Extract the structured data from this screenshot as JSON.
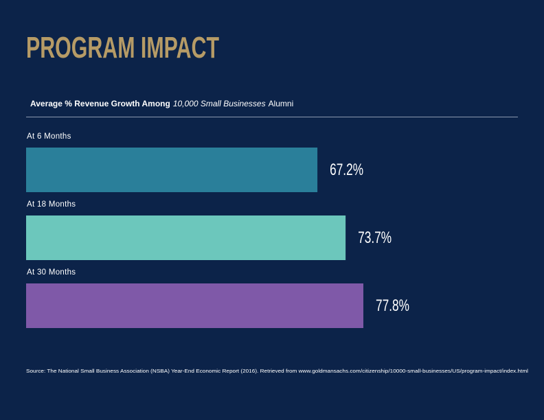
{
  "chart_data": {
    "type": "hbar",
    "title": "PROGRAM IMPACT",
    "subtitle": [
      "Average % Revenue Growth Among",
      "10,000 Small Businesses",
      "Alumni"
    ],
    "categories": [
      "At 6 Months",
      "At 18 Months",
      "At 30 Months"
    ],
    "values": [
      67.2,
      73.7,
      77.8
    ],
    "value_labels": [
      "67.2%",
      "73.7%",
      "77.8%"
    ],
    "colors": [
      "#2a7f9a",
      "#6cc7bc",
      "#7f59a8"
    ],
    "source": "Source: The National Small Business Association (NSBA) Year-End Economic Report (2016). Retrieved from www.goldmansachs.com/citizenship/10000-small-businesses/US/program-impact/index.html"
  }
}
